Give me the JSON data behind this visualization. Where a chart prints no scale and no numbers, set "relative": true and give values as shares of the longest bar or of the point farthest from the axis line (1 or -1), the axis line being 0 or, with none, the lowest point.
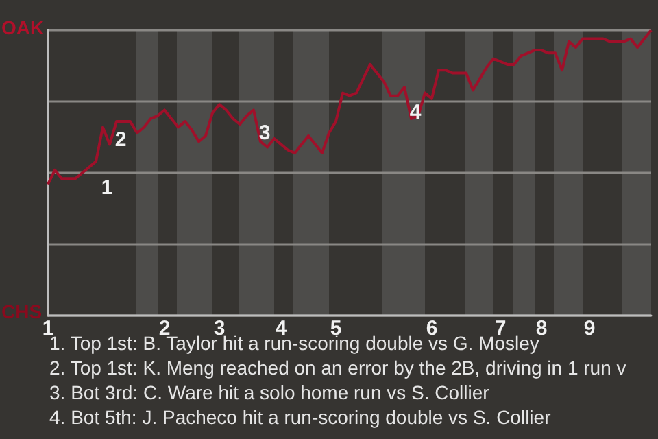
{
  "chart_data": {
    "type": "line",
    "relative": true,
    "categories": [
      "1",
      null,
      null,
      null,
      null,
      null,
      null,
      null,
      null,
      null,
      null,
      null,
      null,
      null,
      null,
      null,
      null,
      "2",
      null,
      null,
      null,
      null,
      null,
      null,
      null,
      "3",
      null,
      null,
      null,
      null,
      null,
      null,
      null,
      null,
      "4",
      null,
      null,
      null,
      null,
      null,
      null,
      null,
      "5",
      null,
      null,
      null,
      null,
      null,
      null,
      null,
      null,
      null,
      null,
      null,
      null,
      null,
      "6",
      null,
      null,
      null,
      null,
      null,
      null,
      null,
      null,
      null,
      "7",
      null,
      null,
      null,
      null,
      null,
      "8",
      null,
      null,
      null,
      null,
      null,
      null,
      "9",
      null,
      null,
      null,
      null,
      null,
      null,
      null,
      null,
      null
    ],
    "series": [
      {
        "color": "#a0102a",
        "values": [
          0.46,
          0.51,
          0.48,
          0.48,
          0.48,
          0.5,
          0.52,
          0.54,
          0.66,
          0.6,
          0.68,
          0.68,
          0.68,
          0.64,
          0.66,
          0.69,
          0.7,
          0.72,
          0.69,
          0.66,
          0.68,
          0.65,
          0.61,
          0.63,
          0.71,
          0.74,
          0.72,
          0.69,
          0.67,
          0.7,
          0.72,
          0.61,
          0.59,
          0.62,
          0.6,
          0.58,
          0.57,
          0.6,
          0.63,
          0.6,
          0.57,
          0.64,
          0.68,
          0.78,
          0.77,
          0.78,
          0.83,
          0.88,
          0.85,
          0.82,
          0.77,
          0.77,
          0.8,
          0.69,
          0.7,
          0.78,
          0.76,
          0.86,
          0.86,
          0.85,
          0.85,
          0.85,
          0.79,
          0.83,
          0.87,
          0.9,
          0.89,
          0.88,
          0.88,
          0.91,
          0.92,
          0.93,
          0.93,
          0.92,
          0.92,
          0.86,
          0.96,
          0.94,
          0.97,
          0.97,
          0.97,
          0.97,
          0.96,
          0.96,
          0.96,
          0.97,
          0.94,
          0.97,
          1.0
        ]
      }
    ],
    "grid": "y",
    "annotations": [
      "OAK",
      "CHS",
      "1",
      "2",
      "3",
      "4",
      "1. Top 1st: B. Taylor hit a run-scoring double vs G. Mosley",
      "2. Top 1st: K. Meng reached on an error by the 2B, driving in 1 run v",
      "3. Bot 3rd: C. Ware hit a solo home run vs S. Collier",
      "4. Bot 5th: J. Pacheco hit a run-scoring double vs S. Collier"
    ]
  }
}
